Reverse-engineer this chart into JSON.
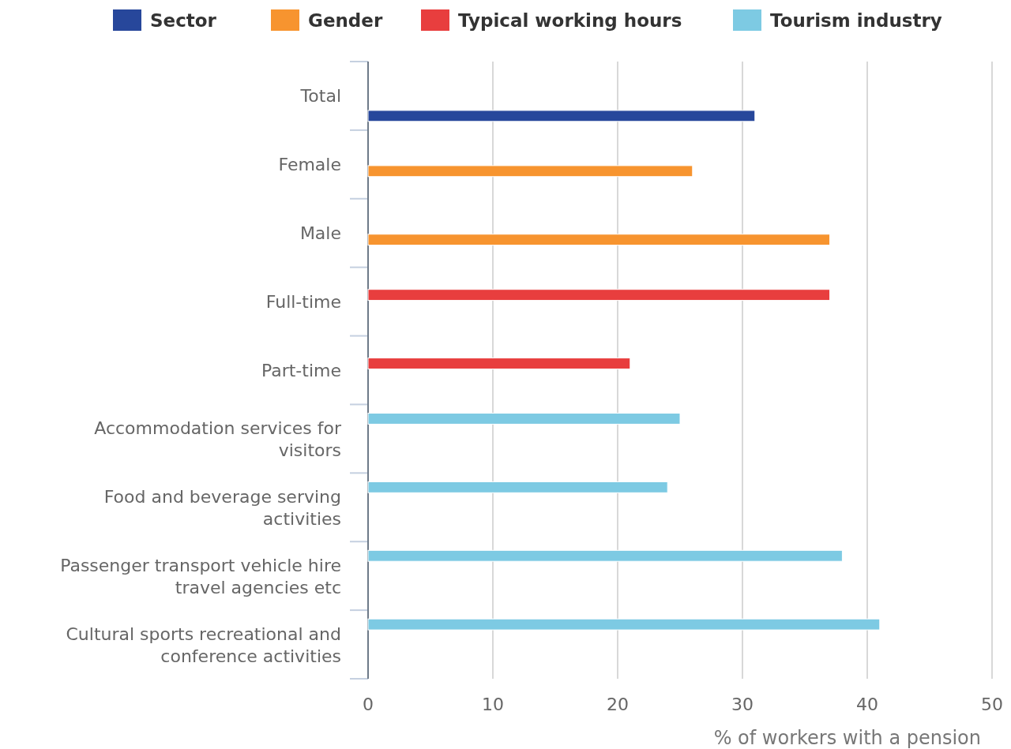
{
  "chart_data": {
    "type": "bar",
    "orientation": "horizontal",
    "xlabel": "% of workers with a pension",
    "categories": [
      "Total",
      "Female",
      "Male",
      "Full-time",
      "Part-time",
      "Accommodation services for visitors",
      "Food and beverage serving activities",
      "Passenger transport vehicle hire travel agencies etc",
      "Cultural sports recreational and conference activities"
    ],
    "series": [
      {
        "name": "Sector",
        "color": "#27479b",
        "values": [
          31,
          null,
          null,
          null,
          null,
          null,
          null,
          null,
          null
        ]
      },
      {
        "name": "Gender",
        "color": "#f7942f",
        "values": [
          null,
          26,
          37,
          null,
          null,
          null,
          null,
          null,
          null
        ]
      },
      {
        "name": "Typical working hours",
        "color": "#e83e3e",
        "values": [
          null,
          null,
          null,
          37,
          21,
          null,
          null,
          null,
          null
        ]
      },
      {
        "name": "Tourism industry",
        "color": "#7dcae3",
        "values": [
          null,
          null,
          null,
          null,
          null,
          25,
          24,
          38,
          41
        ]
      }
    ],
    "xlim": [
      0,
      50
    ],
    "xticks": [
      0,
      10,
      20,
      30,
      40,
      50
    ],
    "grid": "x",
    "legend": "top"
  }
}
